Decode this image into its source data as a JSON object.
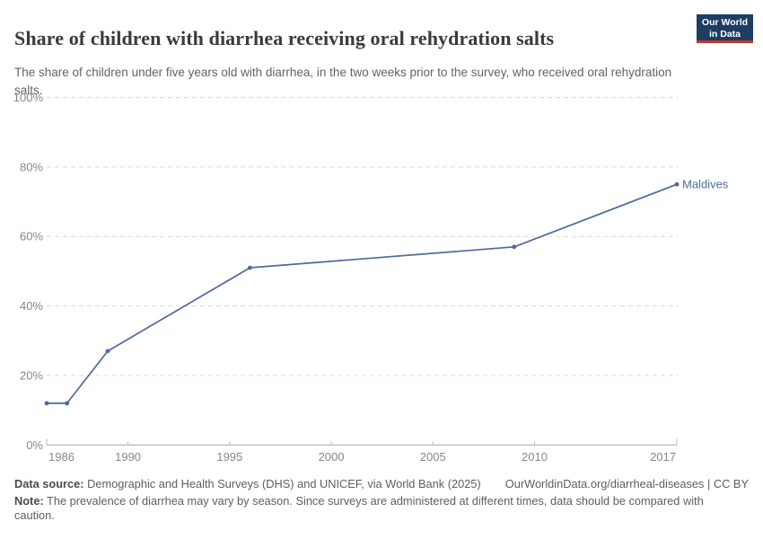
{
  "header": {
    "title": "Share of children with diarrhea receiving oral rehydration salts",
    "subtitle": "The share of children under five years old with diarrhea, in the two weeks prior to the survey, who received oral rehydration salts.",
    "logo": {
      "line1": "Our World",
      "line2": "in Data"
    }
  },
  "chart_data": {
    "type": "line",
    "title": "Share of children with diarrhea receiving oral rehydration salts",
    "xlabel": "",
    "ylabel": "",
    "xlim": [
      1986,
      2017
    ],
    "ylim": [
      0,
      100
    ],
    "x_ticks": [
      1986,
      1990,
      1995,
      2000,
      2005,
      2010,
      2017
    ],
    "y_ticks": [
      0,
      20,
      40,
      60,
      80,
      100
    ],
    "y_tick_suffix": "%",
    "grid": "horizontal-dashed",
    "legend_position": "end-of-line-label",
    "series": [
      {
        "name": "Maldives",
        "x": [
          1986,
          1987,
          1989,
          1996,
          2009,
          2017
        ],
        "y": [
          12,
          12,
          27,
          51,
          57,
          75
        ],
        "color": "#4c6a9c"
      }
    ]
  },
  "footer": {
    "data_source_label": "Data source:",
    "data_source_text": "Demographic and Health Surveys (DHS) and UNICEF, via World Bank (2025)",
    "link_text": "OurWorldinData.org/diarrheal-diseases | CC BY",
    "note_label": "Note:",
    "note_text": "The prevalence of diarrhea may vary by season. Since surveys are administered at different times, data should be compared with caution."
  },
  "colors": {
    "line": "#4c6a9c",
    "series_label": "#4c6a9c",
    "logo_navy": "#1d3d63",
    "logo_red": "#c0392b",
    "gridline": "#dadada",
    "axis_line": "#a3a3a3",
    "tick_text": "#878787",
    "title_text": "#3a3a3a",
    "subtitle_text": "#636363",
    "footer_text": "#5e5e5e"
  }
}
